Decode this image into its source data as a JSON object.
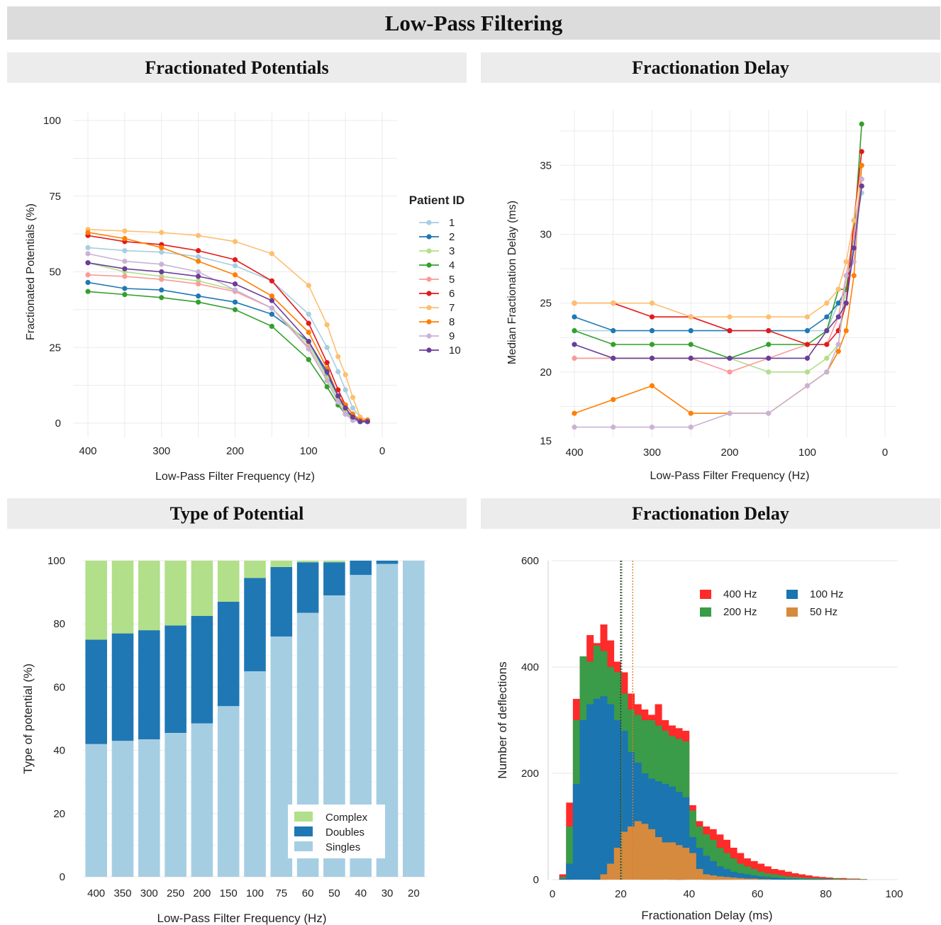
{
  "page_title": "Low-Pass Filtering",
  "chart_data": [
    {
      "id": "fp",
      "type": "line",
      "title": "Fractionated Potentials",
      "xlabel": "Low-Pass Filter Frequency (Hz)",
      "ylabel": "Fractionated Potentials (%)",
      "x_reversed": true,
      "xlim": [
        400,
        0
      ],
      "ylim": [
        0,
        100
      ],
      "x_ticks": [
        400,
        300,
        200,
        100,
        0
      ],
      "y_ticks": [
        0,
        25,
        50,
        75,
        100
      ],
      "grid": true,
      "legend": {
        "title": "Patient ID",
        "placement": "right"
      },
      "x": [
        400,
        350,
        300,
        250,
        200,
        150,
        100,
        75,
        60,
        50,
        40,
        30,
        20
      ],
      "series": [
        {
          "name": "1",
          "color": "#a6cee3",
          "values": [
            58,
            57,
            56.5,
            55,
            52,
            47,
            36,
            25,
            17,
            11,
            5,
            2,
            1
          ]
        },
        {
          "name": "2",
          "color": "#1f78b4",
          "values": [
            46.5,
            44.5,
            44,
            42,
            40,
            36,
            27,
            16,
            9,
            4,
            2,
            1,
            0.5
          ]
        },
        {
          "name": "3",
          "color": "#b2df8a",
          "values": [
            53,
            50,
            48.5,
            47,
            44,
            38,
            26,
            15,
            8,
            4,
            1,
            0.5,
            0.5
          ]
        },
        {
          "name": "4",
          "color": "#33a02c",
          "values": [
            43.5,
            42.5,
            41.5,
            40,
            37.5,
            32,
            21,
            12,
            6,
            3,
            1,
            0.5,
            0.5
          ]
        },
        {
          "name": "5",
          "color": "#fb9a99",
          "values": [
            49,
            48.5,
            47.5,
            46,
            43.5,
            38,
            25,
            14,
            7,
            3,
            1.5,
            0.5,
            0.5
          ]
        },
        {
          "name": "6",
          "color": "#e31a1c",
          "values": [
            62,
            60,
            59,
            57,
            54,
            47,
            33,
            20,
            11,
            6,
            3,
            1,
            1
          ]
        },
        {
          "name": "7",
          "color": "#fdbf6f",
          "values": [
            64,
            63.5,
            63,
            62,
            60,
            56,
            45.5,
            32.5,
            22,
            16,
            8.5,
            2,
            1
          ]
        },
        {
          "name": "8",
          "color": "#ff7f00",
          "values": [
            63,
            61,
            58,
            53.5,
            49,
            42,
            30,
            18,
            9,
            6,
            3,
            1,
            1
          ]
        },
        {
          "name": "9",
          "color": "#cab2d6",
          "values": [
            56,
            53.5,
            52.5,
            50,
            44,
            38,
            24.5,
            14,
            7,
            3,
            1,
            0.5,
            0.5
          ]
        },
        {
          "name": "10",
          "color": "#6a3d9a",
          "values": [
            53,
            51,
            50,
            48.5,
            46,
            40.5,
            27,
            17,
            9,
            5,
            2,
            0.5,
            0.5
          ]
        }
      ]
    },
    {
      "id": "delay",
      "type": "line",
      "title": "Fractionation Delay",
      "xlabel": "Low-Pass Filter Frequency (Hz)",
      "ylabel": "Median Fractionation Delay (ms)",
      "x_reversed": true,
      "xlim": [
        400,
        0
      ],
      "ylim": [
        15,
        38
      ],
      "x_ticks": [
        400,
        300,
        200,
        100,
        0
      ],
      "y_ticks": [
        15,
        20,
        25,
        30,
        35
      ],
      "grid": true,
      "x": [
        400,
        350,
        300,
        250,
        200,
        150,
        100,
        75,
        60,
        50,
        40,
        30
      ],
      "series": [
        {
          "name": "1",
          "color": "#a6cee3",
          "values": [
            23,
            23,
            23,
            23,
            23,
            23,
            23,
            23,
            25,
            26,
            30,
            33
          ]
        },
        {
          "name": "2",
          "color": "#1f78b4",
          "values": [
            24,
            23,
            23,
            23,
            23,
            23,
            23,
            24,
            25,
            26,
            29,
            33.5
          ]
        },
        {
          "name": "3",
          "color": "#b2df8a",
          "values": [
            21,
            21,
            21,
            21,
            21,
            20,
            20,
            21,
            22,
            26,
            30,
            34
          ]
        },
        {
          "name": "4",
          "color": "#33a02c",
          "values": [
            23,
            22,
            22,
            22,
            21,
            22,
            22,
            23,
            26,
            26,
            30,
            38
          ]
        },
        {
          "name": "5",
          "color": "#fb9a99",
          "values": [
            21,
            21,
            21,
            21,
            20,
            21,
            22,
            22,
            24,
            27,
            30,
            34
          ]
        },
        {
          "name": "6",
          "color": "#e31a1c",
          "values": [
            25,
            25,
            24,
            24,
            23,
            23,
            22,
            22,
            23,
            25,
            31,
            36
          ]
        },
        {
          "name": "7",
          "color": "#fdbf6f",
          "values": [
            25,
            25,
            25,
            24,
            24,
            24,
            24,
            25,
            26,
            28,
            31,
            35
          ]
        },
        {
          "name": "8",
          "color": "#ff7f00",
          "values": [
            17,
            18,
            19,
            17,
            17,
            17,
            19,
            20,
            21.5,
            23,
            27,
            35
          ]
        },
        {
          "name": "9",
          "color": "#cab2d6",
          "values": [
            16,
            16,
            16,
            16,
            17,
            17,
            19,
            20,
            22,
            27,
            28,
            34
          ]
        },
        {
          "name": "10",
          "color": "#6a3d9a",
          "values": [
            22,
            21,
            21,
            21,
            21,
            21,
            21,
            23,
            24,
            25,
            29,
            33.5
          ]
        }
      ]
    },
    {
      "id": "type",
      "type": "bar",
      "stacked": true,
      "title": "Type of Potential",
      "xlabel": "Low-Pass Filter Frequency (Hz)",
      "ylabel": "Type of potential (%)",
      "ylim": [
        0,
        100
      ],
      "y_ticks": [
        0,
        20,
        40,
        60,
        80,
        100
      ],
      "grid": true,
      "legend": {
        "placement": "bottom-right"
      },
      "categories": [
        "400",
        "350",
        "300",
        "250",
        "200",
        "150",
        "100",
        "75",
        "60",
        "50",
        "40",
        "30",
        "20"
      ],
      "series": [
        {
          "name": "Singles",
          "color": "#a6cee3",
          "values": [
            42,
            43,
            43.5,
            45.5,
            48.5,
            54,
            65,
            76,
            83.5,
            89,
            95.5,
            99,
            100
          ]
        },
        {
          "name": "Doubles",
          "color": "#1f78b4",
          "values": [
            33,
            34,
            34.5,
            34,
            34,
            33,
            29.5,
            22,
            16,
            10.5,
            4.5,
            1,
            0
          ]
        },
        {
          "name": "Complex",
          "color": "#b2df8a",
          "values": [
            25,
            23,
            22,
            20.5,
            17.5,
            13,
            5.5,
            2,
            0.5,
            0.5,
            0,
            0,
            0
          ]
        }
      ],
      "legend_order": [
        "Complex",
        "Doubles",
        "Singles"
      ]
    },
    {
      "id": "hist",
      "type": "histogram",
      "title": "Fractionation Delay",
      "xlabel": "Fractionation Delay (ms)",
      "ylabel": "Number of deflections",
      "xlim": [
        0,
        100
      ],
      "ylim": [
        0,
        600
      ],
      "x_ticks": [
        0,
        20,
        40,
        60,
        80,
        100
      ],
      "y_ticks": [
        0,
        200,
        400,
        600
      ],
      "grid": true,
      "bin_width": 2,
      "legend": {
        "placement": "top-right"
      },
      "series": [
        {
          "name": "400 Hz",
          "color": "#ff2a2a",
          "bins_start": 2,
          "values": [
            10,
            145,
            340,
            420,
            460,
            445,
            480,
            450,
            410,
            390,
            350,
            330,
            320,
            310,
            330,
            300,
            290,
            285,
            280,
            140,
            110,
            100,
            95,
            85,
            75,
            60,
            50,
            40,
            35,
            30,
            25,
            20,
            18,
            15,
            12,
            10,
            8,
            6,
            5,
            4,
            3,
            3,
            2,
            2,
            1
          ]
        },
        {
          "name": "200 Hz",
          "color": "#3a9b48",
          "bins_start": 2,
          "values": [
            5,
            100,
            300,
            420,
            410,
            440,
            430,
            400,
            390,
            350,
            320,
            310,
            300,
            300,
            290,
            280,
            270,
            265,
            260,
            130,
            100,
            85,
            75,
            60,
            50,
            40,
            30,
            25,
            20,
            15,
            12,
            10,
            8,
            6,
            5,
            4,
            3,
            3,
            2,
            2,
            2,
            1,
            1,
            1,
            1
          ]
        },
        {
          "name": "100 Hz",
          "color": "#1a75b0",
          "bins_start": 2,
          "values": [
            2,
            30,
            180,
            300,
            330,
            340,
            345,
            330,
            300,
            280,
            240,
            220,
            200,
            190,
            185,
            180,
            175,
            165,
            155,
            80,
            60,
            45,
            35,
            25,
            20,
            15,
            12,
            10,
            8,
            6,
            5,
            4,
            3,
            2,
            2,
            1,
            1,
            1,
            1,
            1
          ]
        },
        {
          "name": "50 Hz",
          "color": "#d68a3e",
          "bins_start": 14,
          "values": [
            10,
            30,
            60,
            90,
            100,
            110,
            105,
            95,
            80,
            70,
            70,
            65,
            60,
            50,
            20,
            10,
            8,
            6,
            5,
            4,
            3,
            2,
            2,
            1,
            1
          ]
        }
      ],
      "median_lines": [
        {
          "name": "400 Hz",
          "value": 20,
          "color": "#ff2a2a"
        },
        {
          "name": "200 Hz",
          "value": 20.3,
          "color": "#3a9b48"
        },
        {
          "name": "100 Hz",
          "value": 20,
          "color": "#333333"
        },
        {
          "name": "50 Hz",
          "value": 23.5,
          "color": "#e07b2a"
        }
      ]
    }
  ]
}
